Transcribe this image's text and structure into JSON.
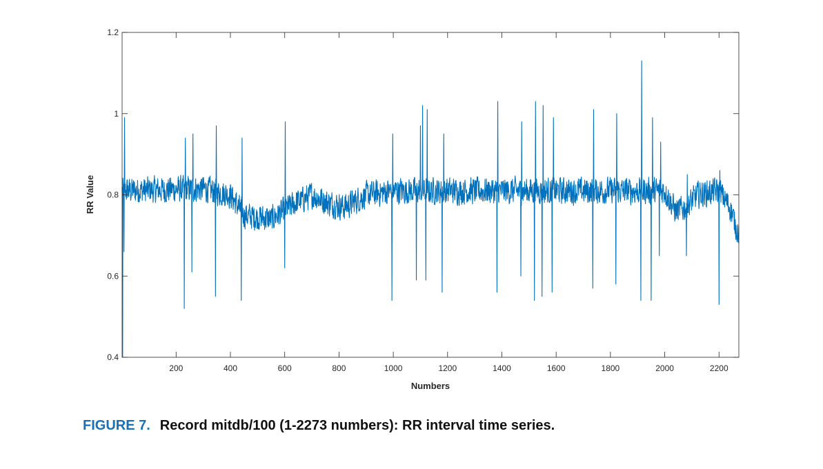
{
  "chart_data": {
    "type": "line",
    "xlabel": "Numbers",
    "ylabel": "RR Value",
    "xlim": [
      1,
      2273
    ],
    "ylim": [
      0.4,
      1.2
    ],
    "xticks": [
      200,
      400,
      600,
      800,
      1000,
      1200,
      1400,
      1600,
      1800,
      2000,
      2200
    ],
    "yticks": [
      0.4,
      0.6,
      0.8,
      1,
      1.2
    ],
    "ytick_labels": [
      "0.4",
      "0.6",
      "0.8",
      "1",
      "1.2"
    ],
    "grid": false,
    "series": [
      {
        "name": "RR interval",
        "color": "#0072bd",
        "n_points": 2273,
        "baseline_profile": [
          {
            "x": 1,
            "y": 0.81
          },
          {
            "x": 300,
            "y": 0.815
          },
          {
            "x": 400,
            "y": 0.8
          },
          {
            "x": 450,
            "y": 0.75
          },
          {
            "x": 550,
            "y": 0.74
          },
          {
            "x": 640,
            "y": 0.78
          },
          {
            "x": 700,
            "y": 0.8
          },
          {
            "x": 760,
            "y": 0.78
          },
          {
            "x": 820,
            "y": 0.77
          },
          {
            "x": 900,
            "y": 0.8
          },
          {
            "x": 1000,
            "y": 0.81
          },
          {
            "x": 1500,
            "y": 0.81
          },
          {
            "x": 2000,
            "y": 0.81
          },
          {
            "x": 2040,
            "y": 0.76
          },
          {
            "x": 2080,
            "y": 0.77
          },
          {
            "x": 2120,
            "y": 0.8
          },
          {
            "x": 2200,
            "y": 0.81
          },
          {
            "x": 2240,
            "y": 0.77
          },
          {
            "x": 2273,
            "y": 0.7
          }
        ],
        "noise_amplitude": 0.03,
        "spikes": [
          {
            "x": 3,
            "y": 0.4
          },
          {
            "x": 8,
            "y": 0.66
          },
          {
            "x": 10,
            "y": 0.99
          },
          {
            "x": 230,
            "y": 0.52
          },
          {
            "x": 234,
            "y": 0.94
          },
          {
            "x": 258,
            "y": 0.61
          },
          {
            "x": 262,
            "y": 0.95
          },
          {
            "x": 345,
            "y": 0.55
          },
          {
            "x": 348,
            "y": 0.97
          },
          {
            "x": 440,
            "y": 0.54
          },
          {
            "x": 443,
            "y": 0.94
          },
          {
            "x": 600,
            "y": 0.62
          },
          {
            "x": 602,
            "y": 0.98
          },
          {
            "x": 995,
            "y": 0.54
          },
          {
            "x": 998,
            "y": 0.95
          },
          {
            "x": 1085,
            "y": 0.59
          },
          {
            "x": 1100,
            "y": 0.97
          },
          {
            "x": 1108,
            "y": 1.02
          },
          {
            "x": 1120,
            "y": 0.59
          },
          {
            "x": 1125,
            "y": 1.01
          },
          {
            "x": 1180,
            "y": 0.56
          },
          {
            "x": 1186,
            "y": 0.95
          },
          {
            "x": 1382,
            "y": 0.56
          },
          {
            "x": 1385,
            "y": 1.03
          },
          {
            "x": 1470,
            "y": 0.6
          },
          {
            "x": 1473,
            "y": 0.98
          },
          {
            "x": 1520,
            "y": 0.54
          },
          {
            "x": 1524,
            "y": 1.03
          },
          {
            "x": 1548,
            "y": 0.55
          },
          {
            "x": 1552,
            "y": 1.02
          },
          {
            "x": 1585,
            "y": 0.56
          },
          {
            "x": 1590,
            "y": 0.99
          },
          {
            "x": 1735,
            "y": 0.57
          },
          {
            "x": 1738,
            "y": 1.01
          },
          {
            "x": 1820,
            "y": 0.58
          },
          {
            "x": 1823,
            "y": 1.0
          },
          {
            "x": 1912,
            "y": 0.54
          },
          {
            "x": 1915,
            "y": 1.13
          },
          {
            "x": 1950,
            "y": 0.54
          },
          {
            "x": 1955,
            "y": 0.99
          },
          {
            "x": 1980,
            "y": 0.65
          },
          {
            "x": 1985,
            "y": 0.93
          },
          {
            "x": 2080,
            "y": 0.65
          },
          {
            "x": 2083,
            "y": 0.85
          },
          {
            "x": 2200,
            "y": 0.53
          },
          {
            "x": 2203,
            "y": 0.86
          },
          {
            "x": 2262,
            "y": 0.69
          }
        ]
      }
    ]
  },
  "caption": {
    "label": "FIGURE 7.",
    "text": "Record mitdb/100 (1-2273 numbers): RR interval time series."
  }
}
